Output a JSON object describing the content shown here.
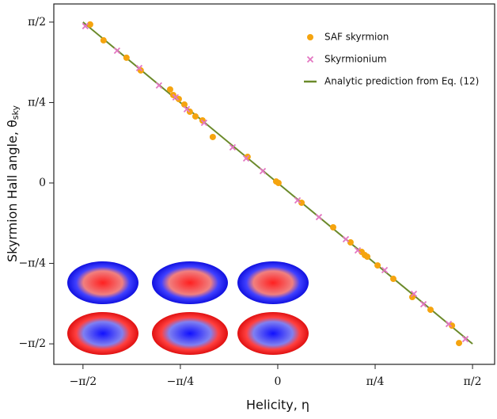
{
  "chart_data": {
    "type": "scatter",
    "xlabel": "Helicity, η",
    "ylabel": "Skyrmion Hall angle, θ",
    "ylabel_subscript": "sky",
    "xlim": [
      -1.806,
      1.749
    ],
    "ylim": [
      -1.771,
      1.748
    ],
    "xticks": [
      {
        "value": -1.5708,
        "label": "−π/2"
      },
      {
        "value": -0.7854,
        "label": "−π/4"
      },
      {
        "value": 0,
        "label": "0"
      },
      {
        "value": 0.7854,
        "label": "π/4"
      },
      {
        "value": 1.5708,
        "label": "π/2"
      }
    ],
    "yticks": [
      {
        "value": -1.5708,
        "label": "−π/2"
      },
      {
        "value": -0.7854,
        "label": "−π/4"
      },
      {
        "value": 0,
        "label": "0"
      },
      {
        "value": 0.7854,
        "label": "π/4"
      },
      {
        "value": 1.5708,
        "label": "π/2"
      }
    ],
    "legend": "upper right",
    "series": [
      {
        "name": "SAF skyrmion",
        "color": "#f5a40f",
        "marker": "circle",
        "x": [
          -1.513,
          -1.405,
          -1.22,
          -1.105,
          -0.868,
          -0.843,
          -0.798,
          -0.753,
          -0.709,
          -0.664,
          -0.607,
          -0.524,
          -0.243,
          -0.013,
          0.006,
          0.192,
          0.447,
          0.587,
          0.677,
          0.702,
          0.722,
          0.805,
          0.932,
          1.085,
          1.232,
          1.405,
          1.462
        ],
        "values": [
          1.548,
          1.393,
          1.223,
          1.099,
          0.913,
          0.859,
          0.82,
          0.766,
          0.696,
          0.65,
          0.611,
          0.449,
          0.255,
          0.015,
          0,
          -0.193,
          -0.433,
          -0.58,
          -0.673,
          -0.704,
          -0.72,
          -0.805,
          -0.936,
          -1.114,
          -1.238,
          -1.393,
          -1.563
        ]
      },
      {
        "name": "Skyrmionium",
        "color": "#e377c2",
        "marker": "x",
        "x": [
          -1.552,
          -1.296,
          -1.117,
          -0.958,
          -0.824,
          -0.734,
          -0.594,
          -0.364,
          -0.255,
          -0.121,
          0.16,
          0.332,
          0.549,
          0.645,
          0.862,
          1.098,
          1.175,
          1.379,
          1.513
        ],
        "values": [
          1.532,
          1.292,
          1.122,
          0.952,
          0.836,
          0.72,
          0.588,
          0.348,
          0.24,
          0.116,
          -0.17,
          -0.333,
          -0.549,
          -0.658,
          -0.851,
          -1.083,
          -1.184,
          -1.377,
          -1.524
        ]
      },
      {
        "name": "Analytic prediction from Eq. (12)",
        "color": "#6b8a2a",
        "marker": "line",
        "x": [
          -1.5708,
          1.5708
        ],
        "values": [
          1.5708,
          -1.5708
        ]
      }
    ]
  }
}
